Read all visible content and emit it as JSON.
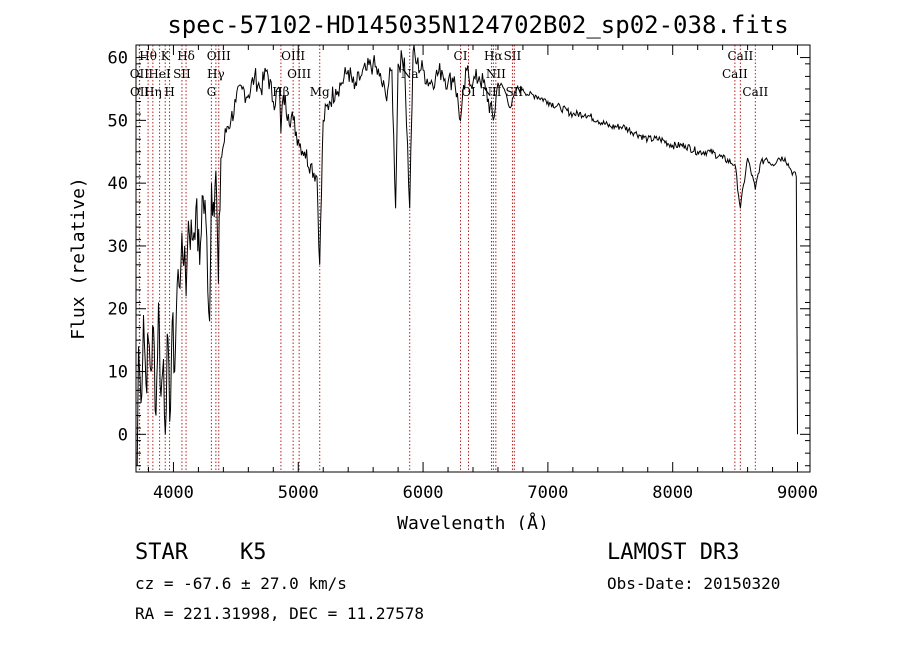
{
  "chart_data": {
    "type": "line",
    "title": "spec-57102-HD145035N124702B02_sp02-038.fits",
    "xlabel": "Wavelength (Å)",
    "ylabel": "Flux (relative)",
    "xlim": [
      3700,
      9100
    ],
    "ylim": [
      -6,
      62
    ],
    "xticks": [
      4000,
      5000,
      6000,
      7000,
      8000,
      9000
    ],
    "yticks": [
      0,
      10,
      20,
      30,
      40,
      50,
      60
    ],
    "line_color": "#000000",
    "marker_color": "#b22222",
    "series": [
      {
        "name": "spectrum",
        "x": [
          3710,
          3720,
          3740,
          3760,
          3780,
          3800,
          3820,
          3840,
          3860,
          3880,
          3900,
          3920,
          3935,
          3950,
          3970,
          3990,
          4010,
          4030,
          4060,
          4090,
          4101,
          4120,
          4150,
          4180,
          4210,
          4230,
          4260,
          4290,
          4305,
          4320,
          4340,
          4360,
          4380,
          4400,
          4430,
          4460,
          4500,
          4550,
          4600,
          4650,
          4700,
          4750,
          4800,
          4850,
          4861,
          4880,
          4920,
          4960,
          5000,
          5050,
          5100,
          5150,
          5172,
          5200,
          5250,
          5300,
          5350,
          5400,
          5450,
          5500,
          5550,
          5600,
          5650,
          5700,
          5750,
          5780,
          5800,
          5850,
          5893,
          5920,
          5950,
          6000,
          6050,
          6100,
          6150,
          6200,
          6250,
          6300,
          6350,
          6400,
          6450,
          6500,
          6563,
          6600,
          6650,
          6700,
          6750,
          6800,
          6850,
          6900,
          7000,
          7100,
          7200,
          7300,
          7400,
          7500,
          7600,
          7700,
          7800,
          7900,
          8000,
          8100,
          8200,
          8300,
          8400,
          8498,
          8542,
          8600,
          8662,
          8700,
          8750,
          8800,
          8850,
          8900,
          8950,
          8990,
          9000
        ],
        "y": [
          -5,
          14,
          5,
          19,
          8,
          15,
          10,
          17,
          3,
          21,
          6,
          12,
          0,
          16,
          2,
          18,
          10,
          24,
          27,
          30,
          22,
          34,
          31,
          36,
          27,
          38,
          34,
          18,
          40,
          37,
          42,
          24,
          44,
          46,
          49,
          50,
          53,
          55,
          54,
          57,
          55,
          58,
          53,
          55,
          48,
          54,
          51,
          50,
          47,
          45,
          43,
          41,
          27,
          50,
          53,
          55,
          56,
          58,
          55,
          57,
          58,
          59,
          57,
          54,
          58,
          36,
          59,
          60,
          36,
          61,
          59,
          58,
          56,
          57,
          58,
          56,
          57,
          50,
          58,
          56,
          57,
          55,
          50,
          56,
          55,
          52,
          55,
          55,
          54,
          54,
          53,
          52,
          51,
          51,
          50,
          49,
          49,
          48,
          47,
          47,
          46,
          46,
          45,
          45,
          44,
          43,
          36,
          44,
          39,
          43,
          44,
          43,
          44,
          44,
          42,
          41,
          0
        ]
      }
    ],
    "spectral_lines": [
      {
        "label": "Hθ",
        "x": 3797,
        "row": 0
      },
      {
        "label": "K",
        "x": 3934,
        "row": 0
      },
      {
        "label": "Hδ",
        "x": 4101,
        "row": 0
      },
      {
        "label": "OIII",
        "x": 4363,
        "row": 0
      },
      {
        "label": "OIII",
        "x": 4959,
        "row": 0
      },
      {
        "label": "CI",
        "x": 6300,
        "row": 0
      },
      {
        "label": "Hα",
        "x": 6563,
        "row": 0
      },
      {
        "label": "SII",
        "x": 6716,
        "row": 0
      },
      {
        "label": "CaII",
        "x": 8542,
        "row": 0
      },
      {
        "label": "OII",
        "x": 3727,
        "row": 1
      },
      {
        "label": "HeI",
        "x": 3889,
        "row": 1
      },
      {
        "label": "SII",
        "x": 4068,
        "row": 1
      },
      {
        "label": "Hγ",
        "x": 4340,
        "row": 1
      },
      {
        "label": "OIII",
        "x": 5007,
        "row": 1
      },
      {
        "label": "Na",
        "x": 5893,
        "row": 1
      },
      {
        "label": "NII",
        "x": 6583,
        "row": 1
      },
      {
        "label": "CaII",
        "x": 8498,
        "row": 1
      },
      {
        "label": "OII",
        "x": 3729,
        "row": 2
      },
      {
        "label": "Hη",
        "x": 3835,
        "row": 2
      },
      {
        "label": "H",
        "x": 3969,
        "row": 2
      },
      {
        "label": "G",
        "x": 4304,
        "row": 2
      },
      {
        "label": "Hβ",
        "x": 4861,
        "row": 2
      },
      {
        "label": "Mg",
        "x": 5172,
        "row": 2
      },
      {
        "label": "OI",
        "x": 6364,
        "row": 2
      },
      {
        "label": "NII",
        "x": 6548,
        "row": 2
      },
      {
        "label": "SII",
        "x": 6731,
        "row": 2
      },
      {
        "label": "CaII",
        "x": 8662,
        "row": 2
      }
    ]
  },
  "info": {
    "object_class": "STAR",
    "subclass": "K5",
    "survey": "LAMOST DR3",
    "cz": "cz = -67.6 ± 27.0 km/s",
    "obs_date": "Obs-Date: 20150320",
    "coords": "RA = 221.31998, DEC =  11.27578"
  }
}
